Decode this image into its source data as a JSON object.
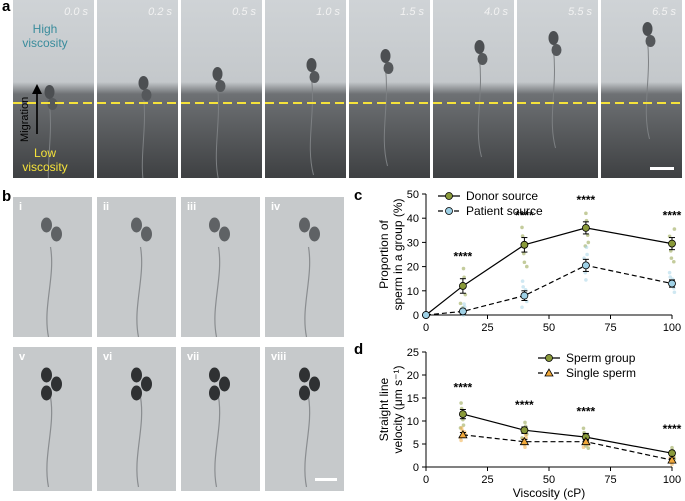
{
  "panel_a": {
    "letter": "a",
    "times": [
      "0.0 s",
      "0.2 s",
      "0.5 s",
      "1.0 s",
      "1.5 s",
      "4.0 s",
      "5.5 s",
      "6.5 s"
    ],
    "high_label": "High viscosity",
    "low_label": "Low viscosity",
    "migration_label": "Migration",
    "colors": {
      "high": "#3a8c9c",
      "low": "#f5e23a",
      "dash": "#f5e23a"
    }
  },
  "panel_b": {
    "letter": "b",
    "labels_top": [
      "i",
      "ii",
      "iii",
      "iv"
    ],
    "labels_bottom": [
      "v",
      "vi",
      "vii",
      "viii"
    ]
  },
  "chart_c": {
    "letter": "c",
    "chart_data": {
      "type": "line",
      "x": [
        0,
        15,
        40,
        65,
        100
      ],
      "series": [
        {
          "name": "Donor source",
          "values": [
            0,
            12,
            29,
            36,
            29.5
          ],
          "err": [
            0,
            3,
            3,
            2.5,
            2.5
          ],
          "color": "#8a9a3a"
        },
        {
          "name": "Patient source",
          "values": [
            0,
            1.5,
            8,
            20.5,
            13
          ],
          "err": [
            0,
            1,
            2,
            2.5,
            1.5
          ],
          "color": "#9fd1e6"
        }
      ],
      "significance": [
        {
          "x": 15,
          "label": "****"
        },
        {
          "x": 40,
          "label": "****"
        },
        {
          "x": 65,
          "label": "****"
        },
        {
          "x": 100,
          "label": "****"
        }
      ],
      "xlabel": "Viscosity (cP)",
      "ylabel_lines": [
        "Proportion of",
        "sperm in a group (%)"
      ],
      "xlim": [
        0,
        100
      ],
      "ylim": [
        0,
        50
      ],
      "xticks": [
        0,
        25,
        50,
        75,
        100
      ],
      "yticks": [
        0,
        10,
        20,
        30,
        40,
        50
      ]
    }
  },
  "chart_d": {
    "letter": "d",
    "chart_data": {
      "type": "line",
      "x": [
        15,
        40,
        65,
        100
      ],
      "series": [
        {
          "name": "Sperm group",
          "values": [
            11.5,
            8,
            6.5,
            3
          ],
          "err": [
            1,
            0.7,
            0.8,
            0.5
          ],
          "color": "#8a9a3a"
        },
        {
          "name": "Single sperm",
          "values": [
            7,
            5.5,
            5.5,
            1.5
          ],
          "err": [
            0.5,
            0.5,
            0.5,
            0.4
          ],
          "color": "#f2a93b"
        }
      ],
      "significance": [
        {
          "x": 15,
          "label": "****"
        },
        {
          "x": 40,
          "label": "****"
        },
        {
          "x": 65,
          "label": "****"
        },
        {
          "x": 100,
          "label": "****"
        }
      ],
      "xlabel": "Viscosity (cP)",
      "ylabel_lines": [
        "Straight line",
        "velocity (μm s⁻¹)"
      ],
      "xlim": [
        0,
        100
      ],
      "ylim": [
        0,
        25
      ],
      "xticks": [
        0,
        25,
        50,
        75,
        100
      ],
      "yticks": [
        0,
        5,
        10,
        15,
        20,
        25
      ]
    }
  }
}
